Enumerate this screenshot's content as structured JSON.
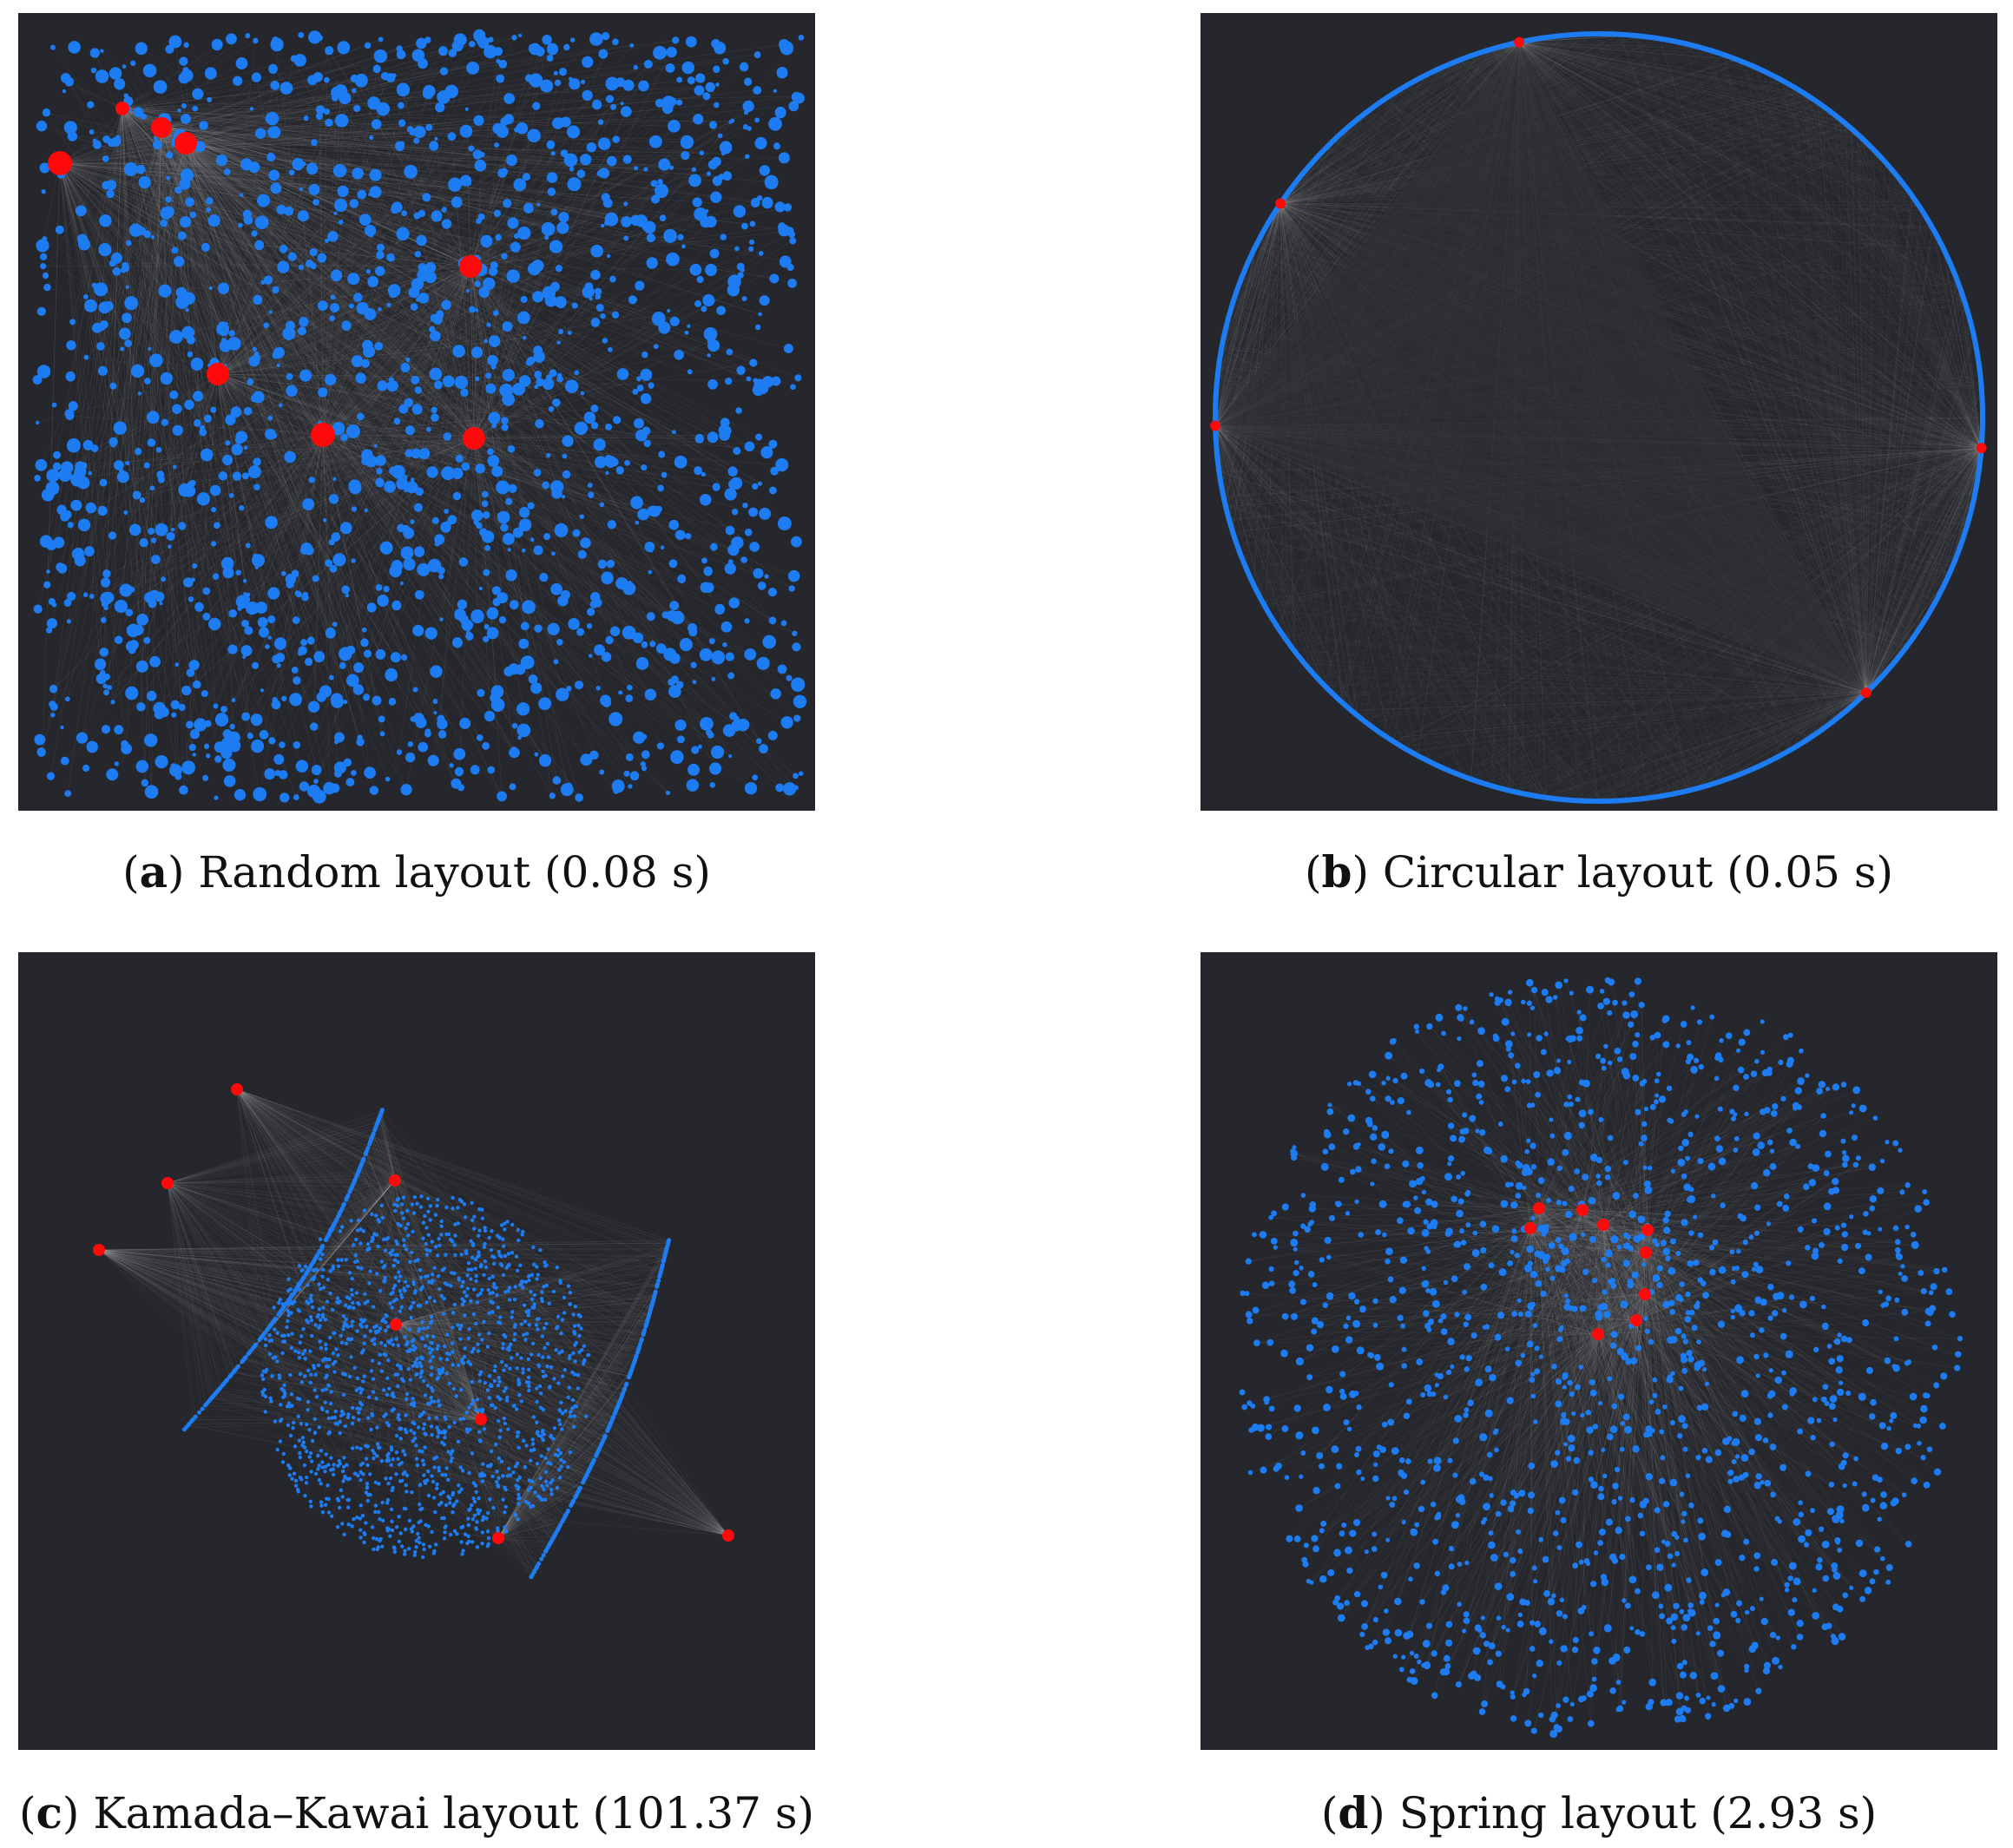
{
  "colors": {
    "panel_bg": "#25272c",
    "node_blue": "#1e7cf2",
    "node_red": "#ff0a0a",
    "edge_gray": "#bfbfbf"
  },
  "panels": [
    {
      "id": "a",
      "letter": "a",
      "caption": ") Random layout (0.08 s)"
    },
    {
      "id": "b",
      "letter": "b",
      "caption": ") Circular layout (0.05 s)"
    },
    {
      "id": "c",
      "letter": "c",
      "caption": ") Kamada–Kawai layout (101.37 s)"
    },
    {
      "id": "d",
      "letter": "d",
      "caption": ") Spring layout (2.93 s)"
    }
  ]
}
